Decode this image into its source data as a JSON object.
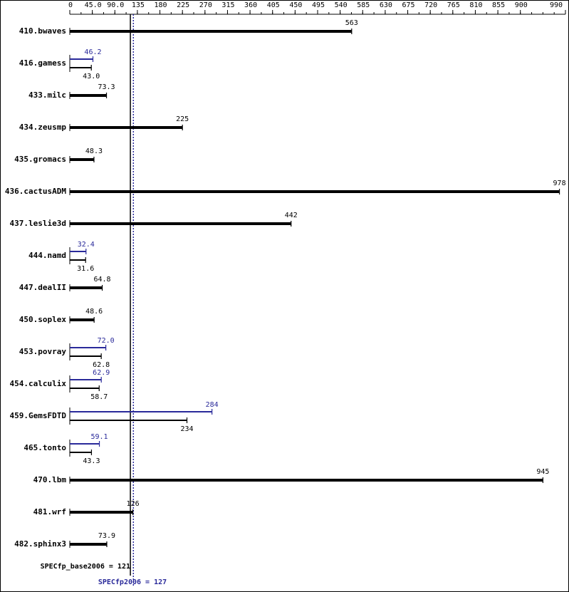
{
  "chart_data": {
    "type": "bar",
    "orientation": "horizontal",
    "categories": [
      "410.bwaves",
      "416.gamess",
      "433.milc",
      "434.zeusmp",
      "435.gromacs",
      "436.cactusADM",
      "437.leslie3d",
      "444.namd",
      "447.dealII",
      "450.soplex",
      "453.povray",
      "454.calculix",
      "459.GemsFDTD",
      "465.tonto",
      "470.lbm",
      "481.wrf",
      "482.sphinx3"
    ],
    "series": [
      {
        "color": "#000000",
        "values": [
          563,
          43.0,
          73.3,
          225,
          48.3,
          978,
          442,
          31.6,
          64.8,
          48.6,
          62.8,
          58.7,
          234,
          43.3,
          945,
          126,
          73.9
        ],
        "value_labels": [
          "563",
          "43.0",
          "73.3",
          "225",
          "48.3",
          "978",
          "442",
          "31.6",
          "64.8",
          "48.6",
          "62.8",
          "58.7",
          "234",
          "43.3",
          "945",
          "126",
          "73.9"
        ]
      },
      {
        "color": "#2a2a9a",
        "values": [
          null,
          46.2,
          null,
          null,
          null,
          null,
          null,
          32.4,
          null,
          null,
          72.0,
          62.9,
          284,
          59.1,
          null,
          null,
          null
        ],
        "value_labels": [
          null,
          "46.2",
          null,
          null,
          null,
          null,
          null,
          "32.4",
          null,
          null,
          "72.0",
          "62.9",
          "284",
          "59.1",
          null,
          null,
          null
        ]
      }
    ],
    "xlim": [
      0,
      990
    ],
    "xticks": [
      0,
      {
        "value": 45,
        "label": "45.0"
      },
      {
        "value": 90,
        "label": "90.0"
      },
      135,
      180,
      225,
      270,
      315,
      360,
      405,
      450,
      495,
      540,
      585,
      630,
      675,
      720,
      765,
      810,
      855,
      900,
      990
    ],
    "reference_lines": [
      {
        "value": 121,
        "label": "SPECfp_base2006 = 121",
        "color": "#000000",
        "style": "solid"
      },
      {
        "value": 127,
        "label": "SPECfp2006 = 127",
        "color": "#2a2a9a",
        "style": "dotted"
      }
    ]
  }
}
